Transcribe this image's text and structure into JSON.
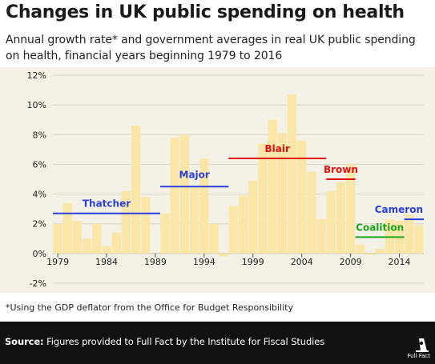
{
  "title": "Changes in UK public spending on health",
  "subtitle": "Annual growth rate* and government averages in real UK public spending on health, financial years beginning 1979 to 2016",
  "footnote": "*Using the GDP deflator from the Office for Budget Responsibility",
  "source_label": "Source:",
  "source_text": " Figures provided to Full Fact by the Institute for Fiscal Studies",
  "logo_text": "Full Fact",
  "colors": {
    "bar": "#fae6a6",
    "panel": "#f4f1e6",
    "grid": "#d9d6cb",
    "blue": "#2a3fdb",
    "red": "#dd1111",
    "green": "#1aa61a",
    "footer": "#111111"
  },
  "chart_data": {
    "type": "bar",
    "title": "Changes in UK public spending on health",
    "ylabel": "",
    "ylim": [
      -2,
      12
    ],
    "yticks": [
      -2,
      0,
      2,
      4,
      6,
      8,
      10,
      12
    ],
    "ytick_labels": [
      "-2%",
      "0%",
      "2%",
      "4%",
      "6%",
      "8%",
      "10%",
      "12%"
    ],
    "xticks": [
      1979,
      1984,
      1989,
      1994,
      1999,
      2004,
      2009,
      2014
    ],
    "x": [
      1979,
      1980,
      1981,
      1982,
      1983,
      1984,
      1985,
      1986,
      1987,
      1988,
      1989,
      1990,
      1991,
      1992,
      1993,
      1994,
      1995,
      1996,
      1997,
      1998,
      1999,
      2000,
      2001,
      2002,
      2003,
      2004,
      2005,
      2006,
      2007,
      2008,
      2009,
      2010,
      2011,
      2012,
      2013,
      2014,
      2015,
      2016
    ],
    "values": [
      2.0,
      3.4,
      2.2,
      1.0,
      2.0,
      0.5,
      1.4,
      4.2,
      8.6,
      3.8,
      0.0,
      2.7,
      7.8,
      8.0,
      4.5,
      6.4,
      2.0,
      -0.2,
      3.2,
      3.9,
      4.9,
      7.4,
      9.0,
      8.1,
      10.7,
      7.6,
      5.5,
      2.3,
      4.2,
      4.8,
      6.0,
      0.6,
      -0.1,
      0.3,
      2.3,
      2.2,
      2.6,
      1.9
    ],
    "government_averages": [
      {
        "name": "Thatcher",
        "start": 1979,
        "end": 1990,
        "value": 2.7,
        "color": "#2a3fdb"
      },
      {
        "name": "Major",
        "start": 1990,
        "end": 1997,
        "value": 4.5,
        "color": "#2a3fdb"
      },
      {
        "name": "Blair",
        "start": 1997,
        "end": 2007,
        "value": 6.4,
        "color": "#dd1111"
      },
      {
        "name": "Brown",
        "start": 2007,
        "end": 2010,
        "value": 5.0,
        "color": "#dd1111"
      },
      {
        "name": "Coalition",
        "start": 2010,
        "end": 2015,
        "value": 1.1,
        "color": "#1aa61a"
      },
      {
        "name": "Cameron",
        "start": 2015,
        "end": 2017,
        "value": 2.3,
        "color": "#2a3fdb"
      }
    ],
    "grid": true
  }
}
